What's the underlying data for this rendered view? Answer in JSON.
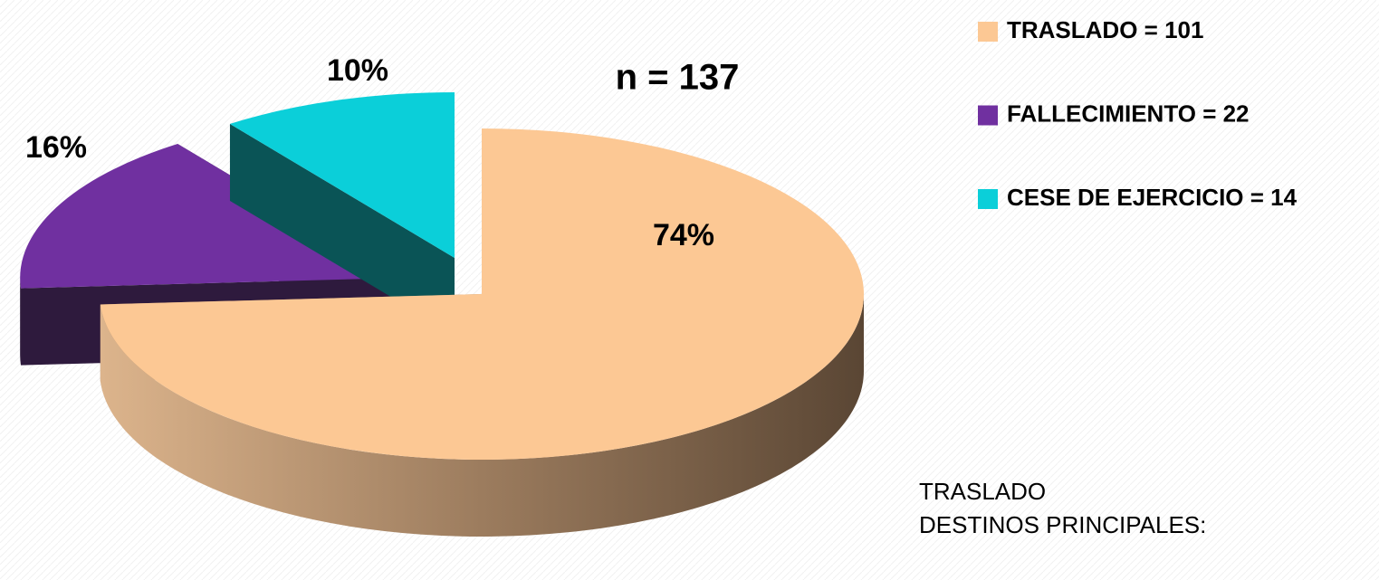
{
  "chart_data": {
    "type": "pie",
    "annotation": "n = 137",
    "categories": [
      "TRASLADO = 101",
      "FALLECIMIENTO = 22",
      "CESE DE EJERCICIO = 14"
    ],
    "values": [
      74,
      16,
      10
    ],
    "value_labels": [
      "74%",
      "16%",
      "10%"
    ],
    "colors": [
      "#fcc894",
      "#7030a0",
      "#0bcfd9"
    ],
    "legend": "upper right"
  },
  "note": {
    "lines": [
      "TRASLADO",
      "DESTINOS PRINCIPALES:"
    ]
  }
}
